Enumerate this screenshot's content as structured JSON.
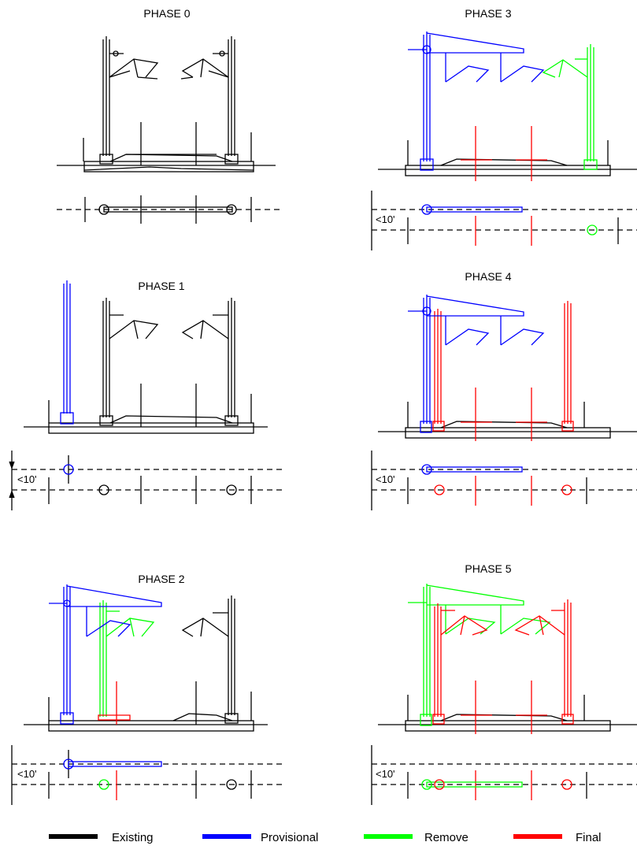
{
  "colors": {
    "existing": "#000000",
    "provisional": "#0000ff",
    "remove": "#00ff00",
    "final": "#ff0000"
  },
  "phases": [
    {
      "title": "PHASE 0",
      "dimension": ""
    },
    {
      "title": "PHASE 1",
      "dimension": "<10'"
    },
    {
      "title": "PHASE 2",
      "dimension": "<10'"
    },
    {
      "title": "PHASE 3",
      "dimension": "<10'"
    },
    {
      "title": "PHASE 4",
      "dimension": "<10'"
    },
    {
      "title": "PHASE 5",
      "dimension": "<10'"
    }
  ],
  "legend": {
    "items": [
      {
        "label": "Existing",
        "color": "#000000"
      },
      {
        "label": "Provisional",
        "color": "#0000ff"
      },
      {
        "label": "Remove",
        "color": "#00ff00"
      },
      {
        "label": "Final",
        "color": "#ff0000"
      }
    ]
  }
}
